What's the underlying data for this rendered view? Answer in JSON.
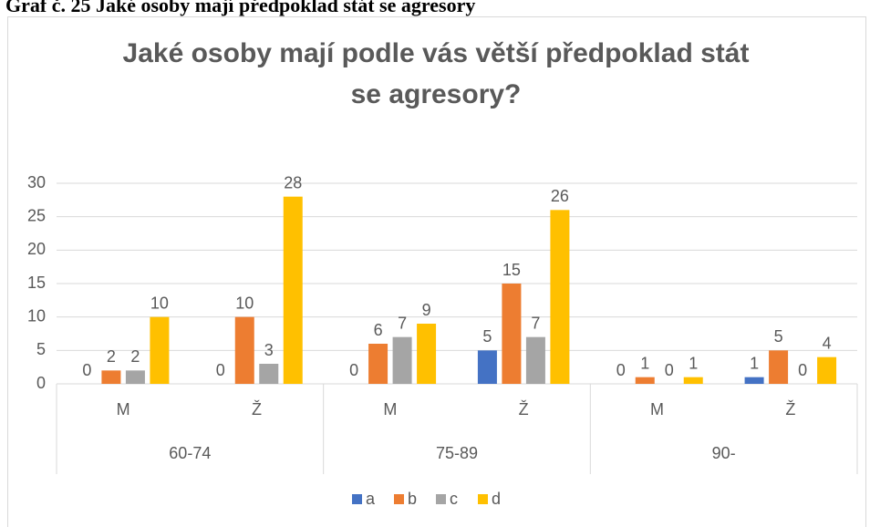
{
  "caption": "Graf č. 25 Jaké osoby mají předpoklad stát se agresory",
  "chart_data": {
    "type": "bar",
    "title": [
      "Jaké osoby mají podle vás větší předpoklad stát",
      "se agresory?"
    ],
    "categories": [
      "M",
      "Ž",
      "M",
      "Ž",
      "M",
      "Ž"
    ],
    "category_groups": [
      "60-74",
      "75-89",
      "90-"
    ],
    "series": [
      {
        "name": "a",
        "color": "#4472c4",
        "values": [
          0,
          0,
          0,
          5,
          0,
          1
        ]
      },
      {
        "name": "b",
        "color": "#ed7d31",
        "values": [
          2,
          10,
          6,
          15,
          1,
          5
        ]
      },
      {
        "name": "c",
        "color": "#a5a5a5",
        "values": [
          2,
          3,
          7,
          7,
          0,
          0
        ]
      },
      {
        "name": "d",
        "color": "#ffc000",
        "values": [
          10,
          28,
          9,
          26,
          1,
          4
        ]
      }
    ],
    "ylim": [
      0,
      30
    ],
    "yticks": [
      0,
      5,
      10,
      15,
      20,
      25,
      30
    ],
    "grid": true,
    "legend": "bottom"
  }
}
